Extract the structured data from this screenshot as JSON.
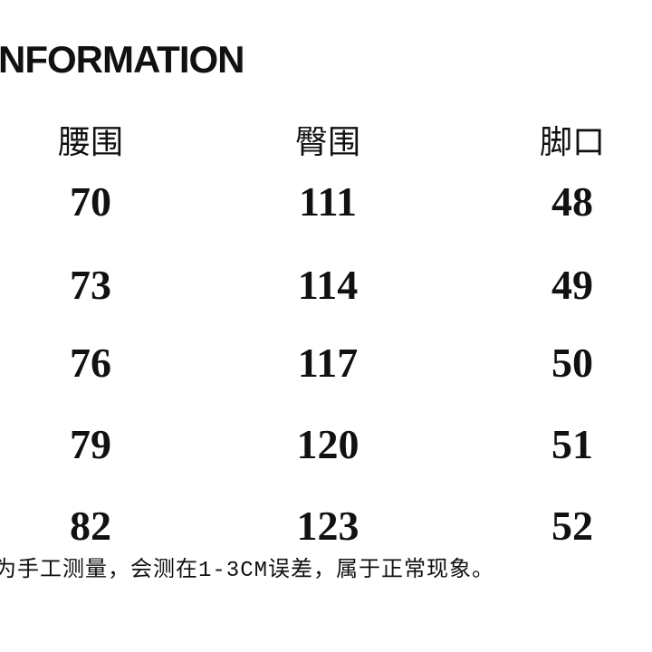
{
  "header": {
    "title": "NFORMATION"
  },
  "table": {
    "columns": [
      "腰围",
      "臀围",
      "脚口"
    ],
    "rows": [
      [
        70,
        111,
        48
      ],
      [
        73,
        114,
        49
      ],
      [
        76,
        117,
        50
      ],
      [
        79,
        120,
        51
      ],
      [
        82,
        123,
        52
      ]
    ]
  },
  "footer": {
    "note": "为手工测量，会测在1-3CM误差，属于正常现象。"
  }
}
